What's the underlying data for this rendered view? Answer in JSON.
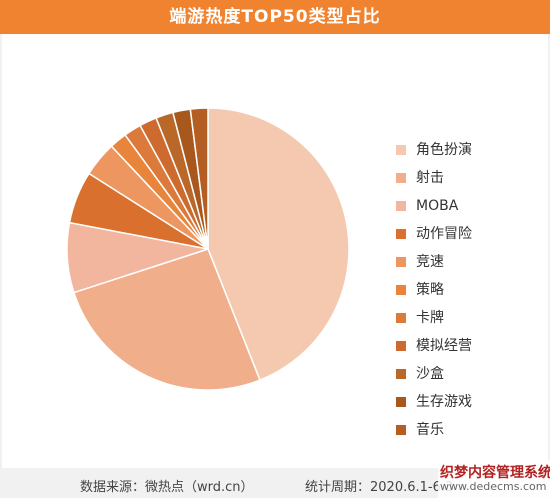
{
  "title": "端游热度TOP50类型占比",
  "footer": {
    "source": "数据来源：微热点（wrd.cn）",
    "period": "统计周期：2020.6.1-6.3"
  },
  "watermark": {
    "text": "织梦内容管理系统",
    "sub": "www.dedecms.com"
  },
  "chart_data": {
    "type": "pie",
    "categories": [
      "角色扮演",
      "射击",
      "MOBA",
      "动作冒险",
      "竞速",
      "策略",
      "卡牌",
      "模拟经营",
      "沙盒",
      "生存游戏",
      "音乐"
    ],
    "values": [
      44,
      26,
      8,
      6,
      4,
      2,
      2,
      2,
      2,
      2,
      2
    ],
    "colors": [
      "#f5c9b0",
      "#f0ae8a",
      "#f2b69e",
      "#d9702e",
      "#ee9660",
      "#e9853a",
      "#dc7a3c",
      "#cd6a2e",
      "#b9682a",
      "#a8581d",
      "#b55e24"
    ],
    "legend_position": "right"
  }
}
